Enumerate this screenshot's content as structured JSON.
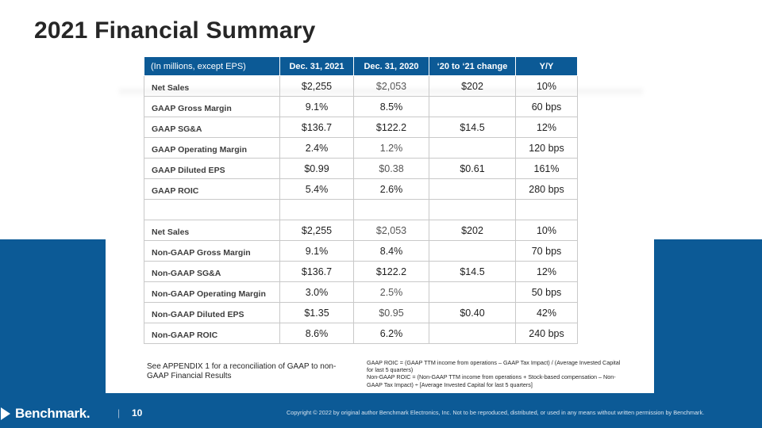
{
  "slide": {
    "title": "2021 Financial Summary",
    "page_number": "10",
    "separator": "|",
    "copyright": "Copyright © 2022 by original author Benchmark Electronics, Inc. Not to be reproduced, distributed, or used in any means without written permission by Benchmark.",
    "logo_text": "Benchmark",
    "logo_suffix": ".",
    "colors": {
      "brand_blue": "#0c5a96",
      "title": "#262626"
    }
  },
  "table": {
    "headers": [
      "(In millions, except EPS)",
      "Dec. 31, 2021",
      "Dec. 31, 2020",
      "‘20 to ‘21 change",
      "Y/Y"
    ],
    "gaap_rows": [
      [
        "Net Sales",
        "$2,255",
        "$2,053",
        "$202",
        "10%"
      ],
      [
        "GAAP Gross Margin",
        "9.1%",
        "8.5%",
        "",
        "60 bps"
      ],
      [
        "GAAP SG&A",
        "$136.7",
        "$122.2",
        "$14.5",
        "12%"
      ],
      [
        "GAAP Operating Margin",
        "2.4%",
        "1.2%",
        "",
        "120 bps"
      ],
      [
        "GAAP Diluted EPS",
        "$0.99",
        "$0.38",
        "$0.61",
        "161%"
      ],
      [
        "GAAP ROIC",
        "5.4%",
        "2.6%",
        "",
        "280 bps"
      ]
    ],
    "non_gaap_rows": [
      [
        "Net Sales",
        "$2,255",
        "$2,053",
        "$202",
        "10%"
      ],
      [
        "Non-GAAP Gross Margin",
        "9.1%",
        "8.4%",
        "",
        "70 bps"
      ],
      [
        "Non-GAAP SG&A",
        "$136.7",
        "$122.2",
        "$14.5",
        "12%"
      ],
      [
        "Non-GAAP Operating Margin",
        "3.0%",
        "2.5%",
        "",
        "50 bps"
      ],
      [
        "Non-GAAP Diluted EPS",
        "$1.35",
        "$0.95",
        "$0.40",
        "42%"
      ],
      [
        "Non-GAAP ROIC",
        "8.6%",
        "6.2%",
        "",
        "240 bps"
      ]
    ]
  },
  "notes": {
    "appendix": "See APPENDIX 1 for a reconciliation of GAAP to non-GAAP Financial Results",
    "definitions": [
      "GAAP ROIC = (GAAP TTM income from operations – GAAP Tax Impact) / (Average Invested Capital for last 5 quarters)",
      "Non-GAAP ROIC = (Non-GAAP TTM income from operations + Stock-based compensation – Non-GAAP Tax Impact) ÷ [Average Invested Capital for last 5 quarters]"
    ]
  }
}
